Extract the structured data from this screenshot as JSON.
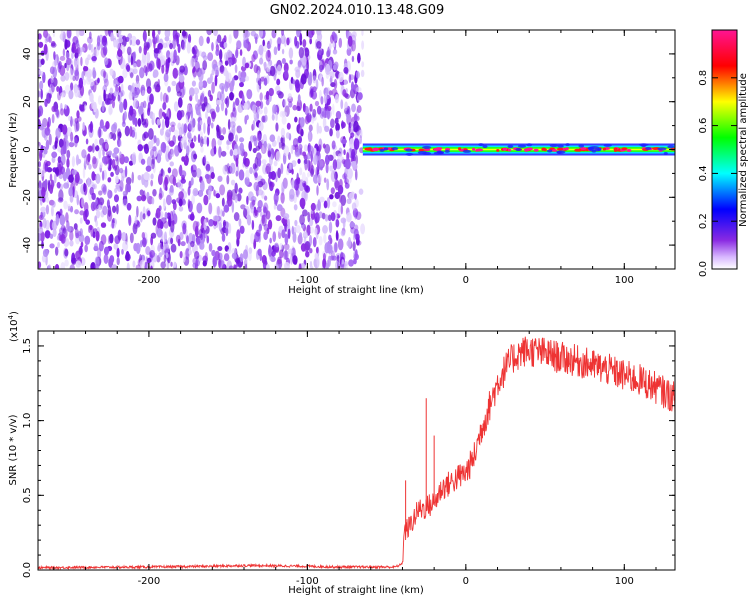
{
  "title": "GN02.2024.010.13.48.G09",
  "chart_data": [
    {
      "type": "heatmap",
      "xlabel": "Height of straight line (km)",
      "ylabel": "Frequency (Hz)",
      "xlim": [
        -270,
        132
      ],
      "ylim": [
        -50,
        50
      ],
      "xticks": [
        -200,
        -100,
        0,
        100
      ],
      "xtick_labels": [
        "-200",
        "-100",
        "0",
        "100"
      ],
      "yticks": [
        -40,
        -20,
        0,
        20,
        40
      ],
      "ytick_labels": [
        "-40",
        "-20",
        "0",
        "20",
        "40"
      ],
      "noise_region_x": [
        -270,
        -65
      ],
      "signal_region_x": [
        -65,
        132
      ],
      "signal_frequency_hz": 0,
      "colorbar": {
        "label": "Normalized spectral amplitude",
        "range": [
          0,
          1
        ],
        "ticks": [
          0.0,
          0.2,
          0.4,
          0.6,
          0.8
        ],
        "tick_labels": [
          "0.0",
          "0.2",
          "0.4",
          "0.6",
          "0.8"
        ],
        "colormap": [
          "#ffffff",
          "#8a2be2",
          "#0000ff",
          "#00ffff",
          "#00ff00",
          "#ffff00",
          "#ff0000",
          "#ff1493"
        ]
      },
      "grid": false
    },
    {
      "type": "line",
      "xlabel": "Height of straight line (km)",
      "ylabel": "SNR (10 * v/v)",
      "multiplier_label": "(x10",
      "multiplier_exp": "4",
      "multiplier_close": ")",
      "xlim": [
        -270,
        132
      ],
      "ylim": [
        0,
        1.6
      ],
      "xticks": [
        -200,
        -100,
        0,
        100
      ],
      "xtick_labels": [
        "-200",
        "-100",
        "0",
        "100"
      ],
      "yticks": [
        0.0,
        0.5,
        1.0,
        1.5
      ],
      "ytick_labels": [
        "0.0",
        "0.5",
        "1.0",
        "1.5"
      ],
      "color": "#ee3333",
      "grid": false,
      "series": [
        {
          "x": [
            -270,
            -240,
            -200,
            -160,
            -140,
            -120,
            -100,
            -80,
            -60,
            -45,
            -42,
            -40,
            -39,
            -35,
            -30,
            -25,
            -20,
            -15,
            -10,
            -5,
            0,
            5,
            10,
            15,
            20,
            25,
            30,
            35,
            40,
            50,
            60,
            70,
            80,
            90,
            100,
            110,
            120,
            132
          ],
          "y": [
            0.015,
            0.018,
            0.02,
            0.025,
            0.03,
            0.028,
            0.025,
            0.02,
            0.02,
            0.02,
            0.03,
            0.05,
            0.25,
            0.3,
            0.4,
            0.42,
            0.45,
            0.55,
            0.58,
            0.62,
            0.65,
            0.75,
            0.95,
            1.1,
            1.25,
            1.35,
            1.42,
            1.46,
            1.47,
            1.45,
            1.42,
            1.4,
            1.37,
            1.34,
            1.3,
            1.27,
            1.22,
            1.15
          ]
        }
      ],
      "spikes": [
        {
          "x": -25,
          "y": 1.15
        },
        {
          "x": -20,
          "y": 0.9
        },
        {
          "x": -38,
          "y": 0.6
        }
      ]
    }
  ]
}
